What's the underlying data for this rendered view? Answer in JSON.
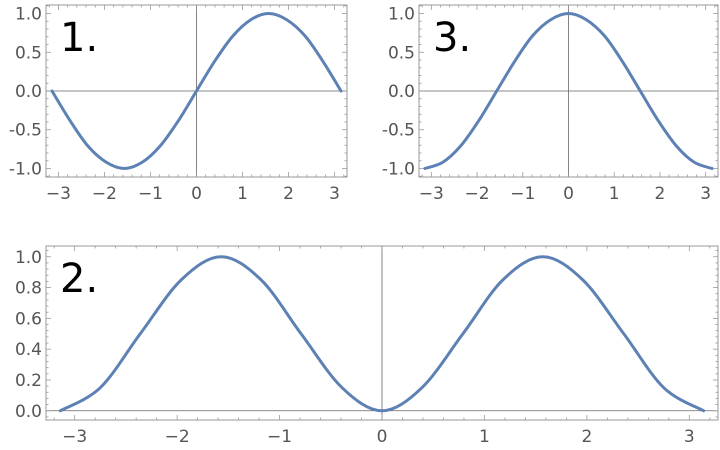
{
  "chart_data": [
    {
      "type": "line",
      "panel_label": "1.",
      "xlim": [
        -3.27,
        3.27
      ],
      "ylim": [
        -1.11,
        1.11
      ],
      "xticks": [
        -3,
        -2,
        -1,
        0,
        1,
        2,
        3
      ],
      "xtick_labels": [
        "−3",
        "−2",
        "−1",
        "0",
        "1",
        "2",
        "3"
      ],
      "yticks": [
        -1.0,
        -0.5,
        0.0,
        0.5,
        1.0
      ],
      "ytick_labels": [
        "-1.0",
        "-0.5",
        "0.0",
        "0.5",
        "1.0"
      ],
      "grid": false,
      "color": "#5e81b5",
      "x": [
        -3.14,
        -2.75,
        -2.36,
        -1.96,
        -1.57,
        -1.18,
        -0.79,
        -0.39,
        0,
        0.39,
        0.79,
        1.18,
        1.57,
        1.96,
        2.36,
        2.75,
        3.14
      ],
      "y": [
        0,
        -0.38,
        -0.71,
        -0.92,
        -1,
        -0.92,
        -0.71,
        -0.38,
        0,
        0.38,
        0.71,
        0.92,
        1,
        0.92,
        0.71,
        0.38,
        0
      ]
    },
    {
      "type": "line",
      "panel_label": "3.",
      "xlim": [
        -3.27,
        3.27
      ],
      "ylim": [
        -1.11,
        1.11
      ],
      "xticks": [
        -3,
        -2,
        -1,
        0,
        1,
        2,
        3
      ],
      "xtick_labels": [
        "−3",
        "−2",
        "−1",
        "0",
        "1",
        "2",
        "3"
      ],
      "yticks": [
        -1.0,
        -0.5,
        0.0,
        0.5,
        1.0
      ],
      "ytick_labels": [
        "-1.0",
        "-0.5",
        "0.0",
        "0.5",
        "1.0"
      ],
      "grid": false,
      "color": "#5e81b5",
      "x": [
        -3.14,
        -2.75,
        -2.36,
        -1.96,
        -1.57,
        -1.18,
        -0.79,
        -0.39,
        0,
        0.39,
        0.79,
        1.18,
        1.57,
        1.96,
        2.36,
        2.75,
        3.14
      ],
      "y": [
        -1,
        -0.92,
        -0.71,
        -0.38,
        0,
        0.38,
        0.71,
        0.92,
        1,
        0.92,
        0.71,
        0.38,
        0,
        -0.38,
        -0.71,
        -0.92,
        -1
      ]
    },
    {
      "type": "line",
      "panel_label": "2.",
      "xlim": [
        -3.28,
        3.28
      ],
      "ylim": [
        -0.06,
        1.07
      ],
      "xticks": [
        -3,
        -2,
        -1,
        0,
        1,
        2,
        3
      ],
      "xtick_labels": [
        "−3",
        "−2",
        "−1",
        "0",
        "1",
        "2",
        "3"
      ],
      "yticks": [
        0.0,
        0.2,
        0.4,
        0.6,
        0.8,
        1.0
      ],
      "ytick_labels": [
        "0.0",
        "0.2",
        "0.4",
        "0.6",
        "0.8",
        "1.0"
      ],
      "grid": false,
      "color": "#5e81b5",
      "x": [
        -3.14,
        -2.75,
        -2.36,
        -1.96,
        -1.57,
        -1.18,
        -0.79,
        -0.39,
        0,
        0.39,
        0.79,
        1.18,
        1.57,
        1.96,
        2.36,
        2.75,
        3.14
      ],
      "y": [
        0,
        0.15,
        0.5,
        0.85,
        1,
        0.85,
        0.5,
        0.15,
        0,
        0.15,
        0.5,
        0.85,
        1,
        0.85,
        0.5,
        0.15,
        0
      ]
    }
  ]
}
